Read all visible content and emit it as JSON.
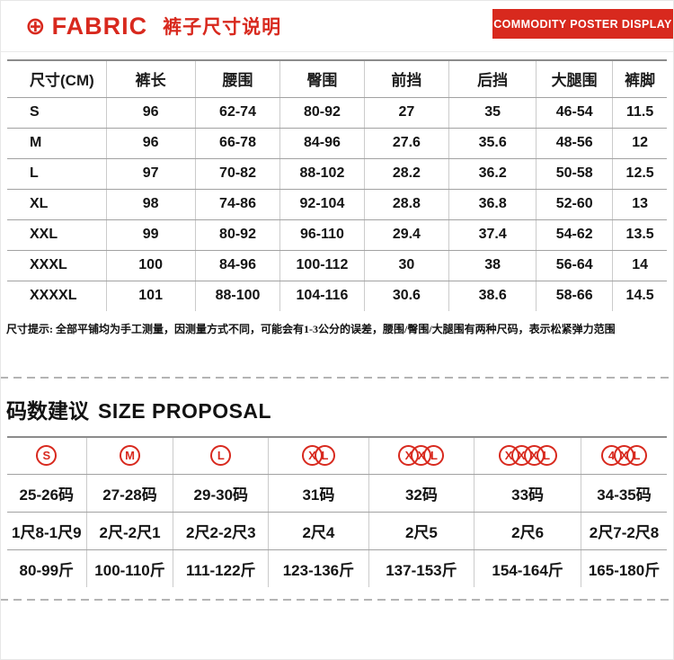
{
  "header": {
    "logo_symbol": "⊕",
    "logo_text": "FABRIC",
    "title": "裤子尺寸说明",
    "banner": "COMMODITY POSTER DISPLAY"
  },
  "size_table": {
    "columns": [
      "尺寸(CM)",
      "裤长",
      "腰围",
      "臀围",
      "前挡",
      "后挡",
      "大腿围",
      "裤脚"
    ],
    "rows": [
      [
        "S",
        "96",
        "62-74",
        "80-92",
        "27",
        "35",
        "46-54",
        "11.5"
      ],
      [
        "M",
        "96",
        "66-78",
        "84-96",
        "27.6",
        "35.6",
        "48-56",
        "12"
      ],
      [
        "L",
        "97",
        "70-82",
        "88-102",
        "28.2",
        "36.2",
        "50-58",
        "12.5"
      ],
      [
        "XL",
        "98",
        "74-86",
        "92-104",
        "28.8",
        "36.8",
        "52-60",
        "13"
      ],
      [
        "XXL",
        "99",
        "80-92",
        "96-110",
        "29.4",
        "37.4",
        "54-62",
        "13.5"
      ],
      [
        "XXXL",
        "100",
        "84-96",
        "100-112",
        "30",
        "38",
        "56-64",
        "14"
      ],
      [
        "XXXXL",
        "101",
        "88-100",
        "104-116",
        "30.6",
        "38.6",
        "58-66",
        "14.5"
      ]
    ]
  },
  "note": "尺寸提示: 全部平铺均为手工测量，因测量方式不同，可能会有1-3公分的误差，腰围/臀围/大腿围有两种尺码，表示松紧弹力范围",
  "proposal": {
    "title_cn": "码数建议",
    "title_en": "SIZE PROPOSAL",
    "sizes": [
      "S",
      "M",
      "L",
      "XL",
      "XXL",
      "XXXL",
      "4XL"
    ],
    "rows": [
      [
        "25-26码",
        "27-28码",
        "29-30码",
        "31码",
        "32码",
        "33码",
        "34-35码"
      ],
      [
        "1尺8-1尺9",
        "2尺-2尺1",
        "2尺2-2尺3",
        "2尺4",
        "2尺5",
        "2尺6",
        "2尺7-2尺8"
      ],
      [
        "80-99斤",
        "100-110斤",
        "111-122斤",
        "123-136斤",
        "137-153斤",
        "154-164斤",
        "165-180斤"
      ]
    ]
  },
  "colors": {
    "brand_red": "#d8291e"
  }
}
